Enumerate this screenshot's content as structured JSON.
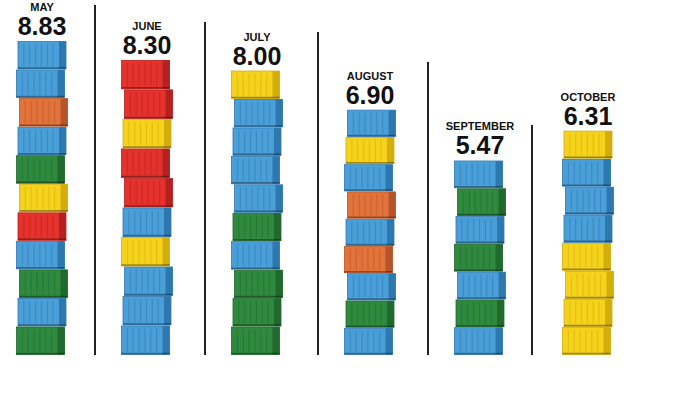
{
  "chart_data": {
    "type": "bar",
    "categories": [
      "MAY",
      "JUNE",
      "JULY",
      "AUGUST",
      "SEPTEMBER",
      "OCTOBER"
    ],
    "values": [
      8.83,
      8.3,
      8.0,
      6.9,
      5.47,
      6.31
    ],
    "data_labels": true,
    "tick_labels": "x"
  }
}
